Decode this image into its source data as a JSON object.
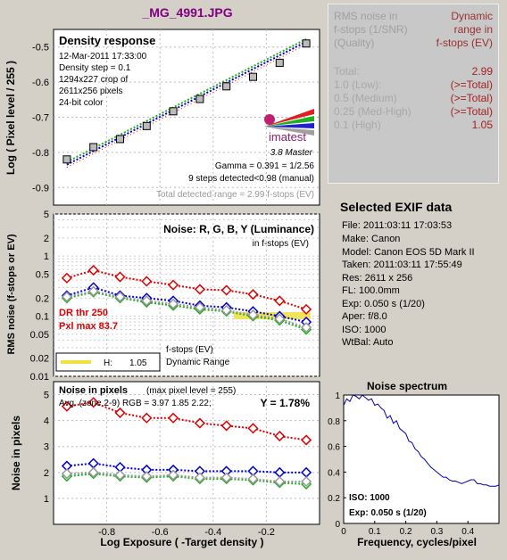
{
  "page_title": "_MG_4991.JPG",
  "summary": {
    "header_left": [
      "RMS noise in",
      "f-stops (1/SNR)",
      "(Quality)"
    ],
    "header_right": [
      "Dynamic",
      "range in",
      "f-stops (EV)"
    ],
    "rows": [
      {
        "label": "Total:",
        "value": "2.99"
      },
      {
        "label": "1.0  (Low):",
        "value": "(>=Total)"
      },
      {
        "label": "0.5  (Medium)",
        "value": "(>=Total)"
      },
      {
        "label": "0.25 (Med-High)",
        "value": "(>=Total)"
      },
      {
        "label": "0.1  (High)",
        "value": "1.05"
      }
    ]
  },
  "exif": {
    "title": "Selected EXIF data",
    "rows": [
      "File:  2011:03:11 17:03:53",
      "Make:  Canon",
      "Model: Canon EOS 5D Mark II",
      "Taken: 2011:03:11 17:55:49",
      "Res:    2611 x 256",
      "FL:  100.0mm",
      "Exp:  0.050 s  (1/20)",
      "Aper:  f/8.0",
      "ISO:   1000",
      "WtBal: Auto"
    ]
  },
  "colors": {
    "red": "#dd0000",
    "blue": "#0000cc",
    "green": "#22aa22",
    "gray": "#999999",
    "yellow": "#f0e040"
  },
  "chart_data": [
    {
      "type": "scatter",
      "title": "Density response",
      "ylabel": "Log ( Pixel level / 255 )",
      "xlim": [
        -1,
        0
      ],
      "ylim": [
        -0.95,
        -0.45
      ],
      "yticks": [
        -0.5,
        -0.6,
        -0.7,
        -0.8,
        -0.9
      ],
      "ytick_labels": [
        "-0.5",
        "-0.6",
        "-0.7",
        "-0.8",
        "-0.9"
      ],
      "info_lines": [
        "12-Mar-2011 17:33:00",
        "Density step = 0.1",
        "1294x227 crop of",
        "2611x256 pixels",
        "24-bit color"
      ],
      "x": [
        -0.95,
        -0.85,
        -0.75,
        -0.65,
        -0.55,
        -0.45,
        -0.35,
        -0.25,
        -0.15,
        -0.05
      ],
      "values": [
        -0.82,
        -0.785,
        -0.762,
        -0.725,
        -0.683,
        -0.648,
        -0.612,
        -0.585,
        -0.545,
        -0.49
      ],
      "fit_line": {
        "x": [
          -0.95,
          -0.05
        ],
        "y": [
          -0.835,
          -0.485
        ]
      },
      "logo_text": "imatest",
      "logo_sub": "3.8  Master",
      "annotations": [
        "Gamma = 0.391 = 1/2.56",
        "9 steps detected<0.98 (manual)",
        "Total detected range = 2.99 f-stops (EV)"
      ]
    },
    {
      "type": "line",
      "title": "Noise: R, G, B, Y (Luminance)",
      "subtitle": "in f-stops (EV)",
      "ylabel": "RMS noise (f-stops or EV)",
      "scale": "log",
      "xlim": [
        -1,
        0
      ],
      "ylim": [
        0.01,
        5
      ],
      "yticks": [
        5,
        2,
        1,
        0.5,
        0.2,
        0.1,
        0.05,
        0.02,
        0.01
      ],
      "ytick_labels": [
        "5",
        "2",
        "1",
        "0.5",
        "0.2",
        "0.1",
        "0.05",
        "0.02",
        "0.01"
      ],
      "x": [
        -0.95,
        -0.85,
        -0.75,
        -0.65,
        -0.55,
        -0.45,
        -0.35,
        -0.25,
        -0.15,
        -0.05
      ],
      "series": [
        {
          "color": "#dd0000",
          "values": [
            0.43,
            0.58,
            0.45,
            0.38,
            0.33,
            0.28,
            0.27,
            0.23,
            0.18,
            0.13
          ]
        },
        {
          "color": "#0000cc",
          "values": [
            0.22,
            0.3,
            0.22,
            0.2,
            0.18,
            0.15,
            0.14,
            0.12,
            0.1,
            0.08
          ]
        },
        {
          "color": "#22aa22",
          "values": [
            0.2,
            0.25,
            0.2,
            0.17,
            0.15,
            0.13,
            0.12,
            0.1,
            0.085,
            0.06
          ]
        },
        {
          "color": "#999999",
          "values": [
            0.21,
            0.26,
            0.21,
            0.18,
            0.16,
            0.14,
            0.125,
            0.105,
            0.09,
            0.065
          ]
        }
      ],
      "highlight": {
        "y": 0.1,
        "x": [
          -0.15,
          -0.05
        ]
      },
      "dr_thr": "DR thr 250",
      "pxl_max": "Pxl max 83.7",
      "legend_title": [
        "f-stops (EV)",
        "Dynamic Range"
      ],
      "legend_entries": [
        {
          "label": "H:",
          "value": "1.05"
        }
      ]
    },
    {
      "type": "line",
      "title": "Noise in pixels",
      "subtitle": "(max pixel level = 255)",
      "avg_text": "Avg. (zone 2-9) RGB = 3.97  1.85  2.22;",
      "y_text": "Y = 1.78%",
      "xlabel": "Log Exposure ( -Target density )",
      "ylabel": "Noise in pixels",
      "xlim": [
        -1,
        0
      ],
      "ylim": [
        0,
        5.5
      ],
      "xticks": [
        -0.8,
        -0.6,
        -0.4,
        -0.2
      ],
      "xtick_labels": [
        "-0.8",
        "-0.6",
        "-0.4",
        "-0.2"
      ],
      "yticks": [
        5,
        4,
        3,
        2,
        1
      ],
      "ytick_labels": [
        "5",
        "4",
        "3",
        "2",
        "1"
      ],
      "x": [
        -0.95,
        -0.85,
        -0.75,
        -0.65,
        -0.55,
        -0.45,
        -0.35,
        -0.25,
        -0.15,
        -0.05
      ],
      "series": [
        {
          "color": "#dd0000",
          "values": [
            4.55,
            4.7,
            4.3,
            4.1,
            4.1,
            3.9,
            3.8,
            3.7,
            3.4,
            3.25
          ]
        },
        {
          "color": "#0000cc",
          "values": [
            2.25,
            2.35,
            2.2,
            2.1,
            2.1,
            2.05,
            2.05,
            2.05,
            2.0,
            2.0
          ]
        },
        {
          "color": "#22aa22",
          "values": [
            1.85,
            1.95,
            1.85,
            1.8,
            1.85,
            1.75,
            1.75,
            1.7,
            1.6,
            1.55
          ]
        },
        {
          "color": "#999999",
          "values": [
            1.95,
            2.0,
            1.9,
            1.85,
            1.9,
            1.8,
            1.8,
            1.75,
            1.65,
            1.65
          ]
        }
      ]
    },
    {
      "type": "line",
      "title": "Noise spectrum",
      "xlabel": "Frequency, cycles/pixel",
      "xlim": [
        0,
        0.5
      ],
      "ylim": [
        0,
        1
      ],
      "xticks": [
        0,
        0.1,
        0.2,
        0.3,
        0.4
      ],
      "xtick_labels": [
        "0",
        "0.1",
        "0.2",
        "0.3",
        "0.4"
      ],
      "yticks": [
        0,
        0.2,
        0.4,
        0.6,
        0.8,
        1
      ],
      "ytick_labels": [
        "0",
        "0.2",
        "0.4",
        "0.6",
        "0.8",
        "1"
      ],
      "iso_text": "ISO:   1000",
      "exp_text": "Exp:   0.050 s   (1/20)",
      "x": [
        0,
        0.01,
        0.02,
        0.03,
        0.04,
        0.05,
        0.06,
        0.07,
        0.08,
        0.09,
        0.1,
        0.11,
        0.12,
        0.13,
        0.14,
        0.15,
        0.16,
        0.17,
        0.18,
        0.19,
        0.2,
        0.21,
        0.22,
        0.23,
        0.24,
        0.25,
        0.26,
        0.27,
        0.28,
        0.29,
        0.3,
        0.31,
        0.32,
        0.33,
        0.34,
        0.35,
        0.36,
        0.37,
        0.38,
        0.39,
        0.4,
        0.41,
        0.42,
        0.43,
        0.44,
        0.45,
        0.46,
        0.47,
        0.48,
        0.49,
        0.5
      ],
      "values": [
        0.92,
        0.97,
        0.95,
        1.0,
        0.99,
        0.97,
        1.0,
        0.98,
        0.96,
        0.97,
        0.92,
        0.93,
        0.9,
        0.88,
        0.82,
        0.84,
        0.78,
        0.8,
        0.74,
        0.72,
        0.7,
        0.64,
        0.63,
        0.58,
        0.56,
        0.52,
        0.5,
        0.47,
        0.44,
        0.42,
        0.4,
        0.38,
        0.36,
        0.36,
        0.34,
        0.33,
        0.33,
        0.32,
        0.31,
        0.32,
        0.33,
        0.34,
        0.34,
        0.31,
        0.31,
        0.3,
        0.3,
        0.29,
        0.29,
        0.29,
        0.3
      ]
    }
  ]
}
